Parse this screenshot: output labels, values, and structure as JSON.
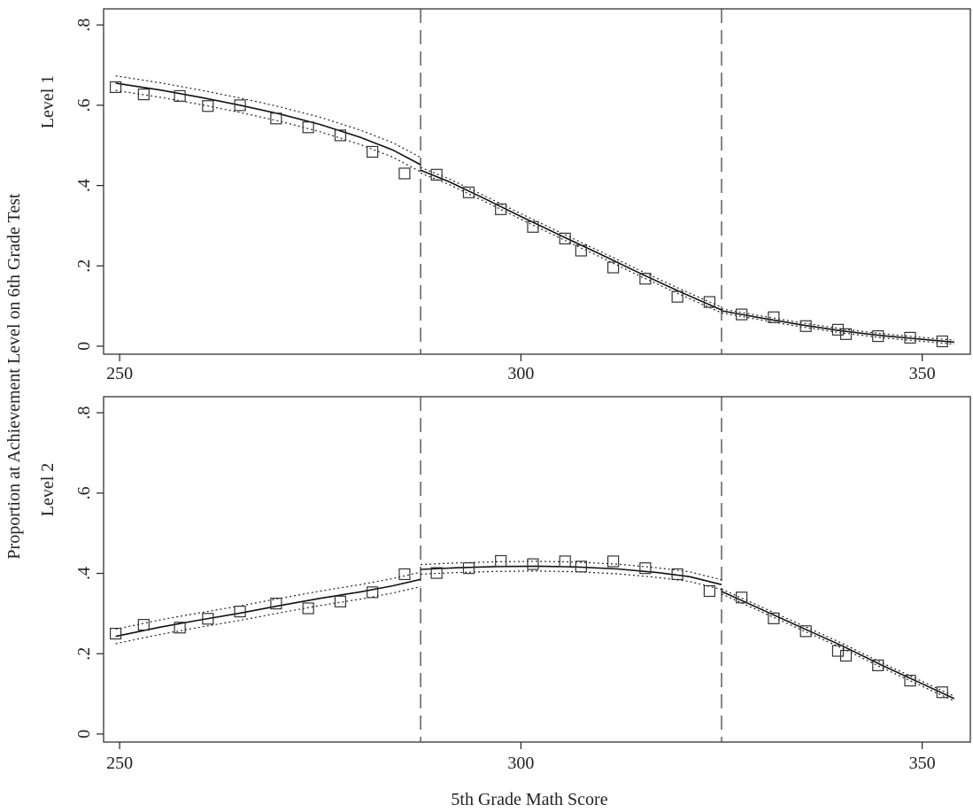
{
  "figure": {
    "ylabel": "Proportion at Achievement Level on 6th Grade Test",
    "xlabel": "5th Grade Math Score"
  },
  "chart_data": [
    {
      "type": "scatter",
      "panel_label": "Level 1",
      "xlim": [
        248,
        356
      ],
      "ylim": [
        -0.02,
        0.84
      ],
      "x_ticks": [
        250,
        300,
        350
      ],
      "x_tick_labels": [
        "250",
        "300",
        "350"
      ],
      "y_ticks": [
        0,
        0.2,
        0.4,
        0.6,
        0.8
      ],
      "y_tick_labels": [
        "0",
        ".2",
        ".4",
        ".6",
        ".8"
      ],
      "cutoffs": [
        287.5,
        325
      ],
      "grid": false,
      "points": [
        [
          249.5,
          0.645
        ],
        [
          253,
          0.627
        ],
        [
          257.5,
          0.623
        ],
        [
          261,
          0.598
        ],
        [
          265,
          0.6
        ],
        [
          269.5,
          0.567
        ],
        [
          273.5,
          0.545
        ],
        [
          277.5,
          0.525
        ],
        [
          281.5,
          0.484
        ],
        [
          285.5,
          0.43
        ],
        [
          289.5,
          0.427
        ],
        [
          293.5,
          0.383
        ],
        [
          297.5,
          0.341
        ],
        [
          301.5,
          0.297
        ],
        [
          305.5,
          0.268
        ],
        [
          307.5,
          0.238
        ],
        [
          311.5,
          0.196
        ],
        [
          315.5,
          0.168
        ],
        [
          319.5,
          0.123
        ],
        [
          323.5,
          0.11
        ],
        [
          327.5,
          0.079
        ],
        [
          331.5,
          0.072
        ],
        [
          335.5,
          0.05
        ],
        [
          339.5,
          0.041
        ],
        [
          340.5,
          0.03
        ],
        [
          344.5,
          0.025
        ],
        [
          348.5,
          0.021
        ],
        [
          352.5,
          0.012
        ]
      ],
      "fit_segments": [
        [
          [
            249.5,
            0.655
          ],
          [
            255,
            0.638
          ],
          [
            260,
            0.62
          ],
          [
            265,
            0.6
          ],
          [
            270,
            0.578
          ],
          [
            275,
            0.552
          ],
          [
            280,
            0.52
          ],
          [
            284,
            0.489
          ],
          [
            287.5,
            0.452
          ]
        ],
        [
          [
            287.5,
            0.438
          ],
          [
            291,
            0.41
          ],
          [
            295,
            0.372
          ],
          [
            300,
            0.323
          ],
          [
            305,
            0.275
          ],
          [
            310,
            0.228
          ],
          [
            315,
            0.18
          ],
          [
            320,
            0.134
          ],
          [
            325,
            0.09
          ]
        ],
        [
          [
            325,
            0.088
          ],
          [
            330,
            0.07
          ],
          [
            335,
            0.053
          ],
          [
            340,
            0.038
          ],
          [
            345,
            0.026
          ],
          [
            350,
            0.017
          ],
          [
            354,
            0.01
          ]
        ]
      ],
      "ci_offsets": [
        0.018,
        0.007,
        0.005
      ]
    },
    {
      "type": "scatter",
      "panel_label": "Level 2",
      "xlim": [
        248,
        356
      ],
      "ylim": [
        -0.02,
        0.84
      ],
      "x_ticks": [
        250,
        300,
        350
      ],
      "x_tick_labels": [
        "250",
        "300",
        "350"
      ],
      "y_ticks": [
        0,
        0.2,
        0.4,
        0.6,
        0.8
      ],
      "y_tick_labels": [
        "0",
        ".2",
        ".4",
        ".6",
        ".8"
      ],
      "cutoffs": [
        287.5,
        325
      ],
      "grid": false,
      "points": [
        [
          249.5,
          0.25
        ],
        [
          253,
          0.272
        ],
        [
          257.5,
          0.265
        ],
        [
          261,
          0.287
        ],
        [
          265,
          0.305
        ],
        [
          269.5,
          0.325
        ],
        [
          273.5,
          0.313
        ],
        [
          277.5,
          0.33
        ],
        [
          281.5,
          0.353
        ],
        [
          285.5,
          0.398
        ],
        [
          289.5,
          0.401
        ],
        [
          293.5,
          0.413
        ],
        [
          297.5,
          0.431
        ],
        [
          301.5,
          0.423
        ],
        [
          305.5,
          0.43
        ],
        [
          307.5,
          0.417
        ],
        [
          311.5,
          0.43
        ],
        [
          315.5,
          0.413
        ],
        [
          319.5,
          0.398
        ],
        [
          323.5,
          0.356
        ],
        [
          327.5,
          0.34
        ],
        [
          331.5,
          0.288
        ],
        [
          335.5,
          0.256
        ],
        [
          339.5,
          0.207
        ],
        [
          340.5,
          0.195
        ],
        [
          344.5,
          0.171
        ],
        [
          348.5,
          0.133
        ],
        [
          352.5,
          0.104
        ]
      ],
      "fit_segments": [
        [
          [
            249.5,
            0.243
          ],
          [
            255,
            0.266
          ],
          [
            260,
            0.284
          ],
          [
            265,
            0.301
          ],
          [
            270,
            0.32
          ],
          [
            275,
            0.338
          ],
          [
            280,
            0.354
          ],
          [
            284,
            0.369
          ],
          [
            287.5,
            0.385
          ]
        ],
        [
          [
            287.5,
            0.41
          ],
          [
            292,
            0.414
          ],
          [
            297,
            0.417
          ],
          [
            302,
            0.418
          ],
          [
            307,
            0.416
          ],
          [
            312,
            0.411
          ],
          [
            317,
            0.402
          ],
          [
            321,
            0.392
          ],
          [
            325,
            0.372
          ]
        ],
        [
          [
            325,
            0.355
          ],
          [
            330,
            0.31
          ],
          [
            335,
            0.265
          ],
          [
            340,
            0.22
          ],
          [
            345,
            0.171
          ],
          [
            350,
            0.125
          ],
          [
            354,
            0.088
          ]
        ]
      ],
      "ci_offsets": [
        0.018,
        0.012,
        0.006
      ]
    }
  ]
}
